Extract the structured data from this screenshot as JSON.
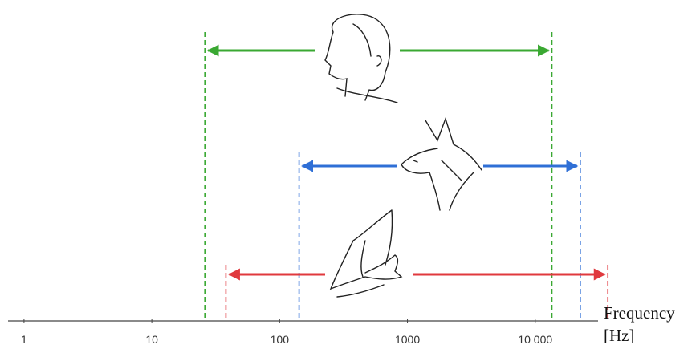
{
  "chart_data": {
    "type": "range",
    "xscale": "log",
    "xlabel": "Frequency [Hz]",
    "xlim": [
      0.75,
      31000
    ],
    "xticks": [
      1,
      10,
      100,
      1000,
      {
        "value": 10000,
        "label": "10 000"
      }
    ],
    "series": [
      {
        "color": "#3aa832",
        "values": [
          26,
          13500
        ]
      },
      {
        "color": "#2f6fd6",
        "values": [
          142,
          22500
        ]
      },
      {
        "color": "#e0393e",
        "values": [
          38,
          37000
        ]
      }
    ]
  }
}
